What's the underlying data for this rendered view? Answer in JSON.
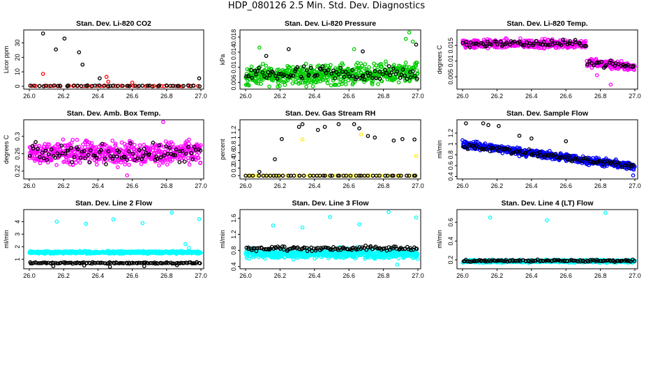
{
  "page": {
    "title": "HDP_080126  2.5 Min. Std. Dev. Diagnostics"
  },
  "chart_data": [
    {
      "type": "scatter",
      "title": "Stan. Dev. Li-820 CO2",
      "xlabel": "",
      "ylabel": "Licor ppm",
      "xlim": [
        26.0,
        27.0
      ],
      "ylim": [
        -1,
        38
      ],
      "xticks": [
        "26.0",
        "26.2",
        "26.4",
        "26.6",
        "26.8",
        "27.0"
      ],
      "yticks": [
        0,
        10,
        20,
        30
      ],
      "color": "#ff0000",
      "color2": "#000000",
      "series": [
        {
          "name": "series-1",
          "color": "#ff0000",
          "n": 45,
          "base": 0.15,
          "noise": 0.2,
          "trend": 0,
          "extra": [
            [
              26.08,
              8.6
            ],
            [
              26.45,
              6.5
            ],
            [
              26.46,
              3.2
            ],
            [
              26.6,
              2.5
            ]
          ]
        },
        {
          "name": "series-2",
          "color": "#000000",
          "n": 45,
          "base": 0.3,
          "noise": 0.3,
          "trend": 0,
          "extra": [
            [
              26.08,
              36.5
            ],
            [
              26.155,
              25.5
            ],
            [
              26.205,
              33
            ],
            [
              26.29,
              23.5
            ],
            [
              26.31,
              15
            ],
            [
              26.41,
              5.5
            ],
            [
              26.99,
              5.5
            ]
          ]
        }
      ]
    },
    {
      "type": "scatter",
      "title": "Stan. Dev. Li-820 Pressure",
      "xlabel": "",
      "ylabel": "kPa",
      "xlim": [
        26.0,
        27.0
      ],
      "ylim": [
        0.0046,
        0.0195
      ],
      "xticks": [
        "26.0",
        "26.2",
        "26.4",
        "26.6",
        "26.8",
        "27.0"
      ],
      "yticks": [
        0.006,
        0.01,
        0.014,
        0.018
      ],
      "color": "#00cc00",
      "color2": "#000000",
      "series": [
        {
          "name": "series-1",
          "color": "#00cc00",
          "n": 560,
          "base": 0.0078,
          "noise": 0.0022,
          "trend": 0.0006,
          "extra": [
            [
              26.95,
              0.0192
            ],
            [
              26.93,
              0.0175
            ],
            [
              26.97,
              0.0168
            ],
            [
              26.08,
              0.0152
            ],
            [
              26.63,
              0.0148
            ]
          ]
        },
        {
          "name": "series-2",
          "color": "#000000",
          "n": 90,
          "base": 0.0082,
          "noise": 0.0018,
          "trend": 0,
          "extra": [
            [
              26.25,
              0.0148
            ],
            [
              26.12,
              0.013
            ],
            [
              26.68,
              0.0142
            ],
            [
              26.99,
              0.016
            ]
          ]
        }
      ]
    },
    {
      "type": "scatter",
      "title": "Stan. Dev. Li-820 Temp.",
      "xlabel": "",
      "ylabel": "degrees C",
      "xlim": [
        26.0,
        27.0
      ],
      "ylim": [
        0.0015,
        0.0195
      ],
      "xticks": [
        "26.0",
        "26.2",
        "26.4",
        "26.6",
        "26.8",
        "27.0"
      ],
      "yticks": [
        0.005,
        0.01,
        0.015
      ],
      "color": "#ff00ff",
      "color2": "#000000",
      "series": [
        {
          "name": "series-1",
          "color": "#ff00ff",
          "n": 520,
          "base": 0.0155,
          "noise": 0.0012,
          "trend": 0,
          "drop": {
            "at": 26.72,
            "to": 0.0095
          },
          "extra": [
            [
              26.86,
              0.0025
            ],
            [
              26.78,
              0.0055
            ]
          ]
        },
        {
          "name": "series-2",
          "color": "#000000",
          "n": 90,
          "base": 0.0156,
          "noise": 0.0009,
          "trend": 0,
          "drop": {
            "at": 26.72,
            "to": 0.0097
          }
        }
      ]
    },
    {
      "type": "scatter",
      "title": "Stan. Dev. Amb. Box Temp.",
      "xlabel": "",
      "ylabel": "degrees C",
      "xlim": [
        26.0,
        27.0
      ],
      "ylim": [
        0.205,
        0.335
      ],
      "xticks": [
        "26.0",
        "26.2",
        "26.4",
        "26.6",
        "26.8",
        "27.0"
      ],
      "yticks": [
        0.22,
        0.26,
        0.3
      ],
      "color": "#ff00ff",
      "color2": "#000000",
      "series": [
        {
          "name": "series-1",
          "color": "#ff00ff",
          "n": 560,
          "base": 0.262,
          "noise": 0.022,
          "trend": 0,
          "extra": [
            [
              26.78,
              0.333
            ],
            [
              26.57,
              0.21
            ]
          ]
        },
        {
          "name": "series-2",
          "color": "#000000",
          "n": 90,
          "base": 0.26,
          "noise": 0.018,
          "trend": 0
        }
      ]
    },
    {
      "type": "scatter",
      "title": "Stan. Dev. Gas Stream RH",
      "xlabel": "",
      "ylabel": "percent",
      "xlim": [
        26.0,
        27.0
      ],
      "ylim": [
        -0.05,
        1.43
      ],
      "xticks": [
        "26.0",
        "26.2",
        "26.4",
        "26.6",
        "26.8",
        "27.0"
      ],
      "yticks": [
        0.0,
        0.2,
        0.4,
        0.6,
        0.8,
        1.0,
        1.2
      ],
      "color": "#ffee00",
      "color2": "#000000",
      "series": [
        {
          "name": "series-1",
          "color": "#ffee00",
          "n": 48,
          "base": 0.0,
          "noise": 0.0,
          "trend": 0,
          "extra": [
            [
              26.33,
              0.95
            ],
            [
              26.67,
              1.08
            ],
            [
              26.99,
              0.52
            ]
          ]
        },
        {
          "name": "series-2",
          "color": "#000000",
          "n": 48,
          "base": 0.0,
          "noise": 0.0,
          "trend": 0,
          "extra": [
            [
              26.08,
              0.1
            ],
            [
              26.17,
              0.43
            ],
            [
              26.21,
              0.96
            ],
            [
              26.31,
              1.28
            ],
            [
              26.33,
              1.35
            ],
            [
              26.42,
              1.2
            ],
            [
              26.46,
              1.28
            ],
            [
              26.54,
              1.35
            ],
            [
              26.63,
              1.35
            ],
            [
              26.66,
              1.24
            ],
            [
              26.71,
              1.04
            ],
            [
              26.75,
              1.0
            ],
            [
              26.86,
              0.92
            ],
            [
              26.91,
              0.96
            ],
            [
              26.98,
              0.95
            ]
          ]
        }
      ]
    },
    {
      "type": "scatter",
      "title": "Stan. Dev. Sample Flow",
      "xlabel": "",
      "ylabel": "ml/min",
      "xlim": [
        26.0,
        27.0
      ],
      "ylim": [
        0.38,
        1.42
      ],
      "xticks": [
        "26.0",
        "26.2",
        "26.4",
        "26.6",
        "26.8",
        "27.0"
      ],
      "yticks": [
        0.4,
        0.6,
        0.8,
        1.0,
        1.2
      ],
      "color": "#0000ff",
      "color2": "#000000",
      "series": [
        {
          "name": "series-1",
          "color": "#0000ff",
          "n": 560,
          "base": 1.0,
          "noise": 0.06,
          "trend": -0.42,
          "extra": [
            [
              26.99,
              0.42
            ]
          ]
        },
        {
          "name": "series-2",
          "color": "#000000",
          "n": 90,
          "base": 0.98,
          "noise": 0.05,
          "trend": -0.4,
          "extra": [
            [
              26.02,
              1.38
            ],
            [
              26.12,
              1.38
            ],
            [
              26.15,
              1.35
            ],
            [
              26.21,
              1.33
            ],
            [
              26.33,
              1.15
            ],
            [
              26.4,
              1.1
            ],
            [
              26.6,
              1.05
            ]
          ]
        }
      ]
    },
    {
      "type": "scatter",
      "title": "Stan. Dev. Line 2 Flow",
      "xlabel": "",
      "ylabel": "ml/min",
      "xlim": [
        26.0,
        27.0
      ],
      "ylim": [
        0.35,
        4.85
      ],
      "xticks": [
        "26.0",
        "26.2",
        "26.4",
        "26.6",
        "26.8",
        "27.0"
      ],
      "yticks": [
        1,
        2,
        3,
        4
      ],
      "color": "#00ffff",
      "color2": "#000000",
      "series": [
        {
          "name": "series-1",
          "color": "#00ffff",
          "n": 600,
          "base": 1.55,
          "noise": 0.08,
          "trend": 0,
          "extra": [
            [
              26.16,
              4.0
            ],
            [
              26.33,
              3.82
            ],
            [
              26.49,
              4.18
            ],
            [
              26.66,
              3.88
            ],
            [
              26.83,
              4.72
            ],
            [
              26.99,
              4.2
            ],
            [
              26.91,
              2.2
            ],
            [
              26.93,
              1.9
            ]
          ]
        },
        {
          "name": "series-2",
          "color": "#000000",
          "n": 120,
          "base": 0.7,
          "noise": 0.05,
          "trend": 0,
          "extra": [
            [
              26.14,
              0.45
            ],
            [
              26.32,
              0.5
            ],
            [
              26.47,
              0.4
            ],
            [
              26.67,
              0.45
            ],
            [
              26.86,
              0.52
            ]
          ]
        }
      ]
    },
    {
      "type": "scatter",
      "title": "Stan. Dev. Line 3 Flow",
      "xlabel": "",
      "ylabel": "ml/min",
      "xlim": [
        26.0,
        27.0
      ],
      "ylim": [
        0.38,
        1.78
      ],
      "xticks": [
        "26.0",
        "26.2",
        "26.4",
        "26.6",
        "26.8",
        "27.0"
      ],
      "yticks": [
        0.4,
        0.8,
        1.2,
        1.6
      ],
      "color": "#00ffff",
      "color2": "#000000",
      "series": [
        {
          "name": "series-1",
          "color": "#00ffff",
          "n": 600,
          "base": 0.72,
          "noise": 0.1,
          "trend": 0,
          "extra": [
            [
              26.16,
              1.42
            ],
            [
              26.33,
              1.37
            ],
            [
              26.49,
              1.63
            ],
            [
              26.66,
              1.45
            ],
            [
              26.83,
              1.75
            ],
            [
              26.99,
              1.62
            ],
            [
              26.88,
              0.45
            ]
          ]
        },
        {
          "name": "series-2",
          "color": "#000000",
          "n": 120,
          "base": 0.85,
          "noise": 0.05,
          "trend": 0
        }
      ]
    },
    {
      "type": "scatter",
      "title": "Stan. Dev. Line 4 (LT) Flow",
      "xlabel": "",
      "ylabel": "ml/min",
      "xlim": [
        26.0,
        27.0
      ],
      "ylim": [
        0.12,
        0.72
      ],
      "xticks": [
        "26.0",
        "26.2",
        "26.4",
        "26.6",
        "26.8",
        "27.0"
      ],
      "yticks": [
        0.2,
        0.4,
        0.6
      ],
      "color": "#00ffff",
      "color2": "#000000",
      "series": [
        {
          "name": "series-1",
          "color": "#00ffff",
          "n": 600,
          "base": 0.185,
          "noise": 0.012,
          "trend": 0,
          "extra": [
            [
              26.16,
              0.65
            ],
            [
              26.49,
              0.62
            ],
            [
              26.83,
              0.7
            ]
          ]
        },
        {
          "name": "series-2",
          "color": "#000000",
          "n": 120,
          "base": 0.19,
          "noise": 0.01,
          "trend": 0
        }
      ]
    }
  ]
}
